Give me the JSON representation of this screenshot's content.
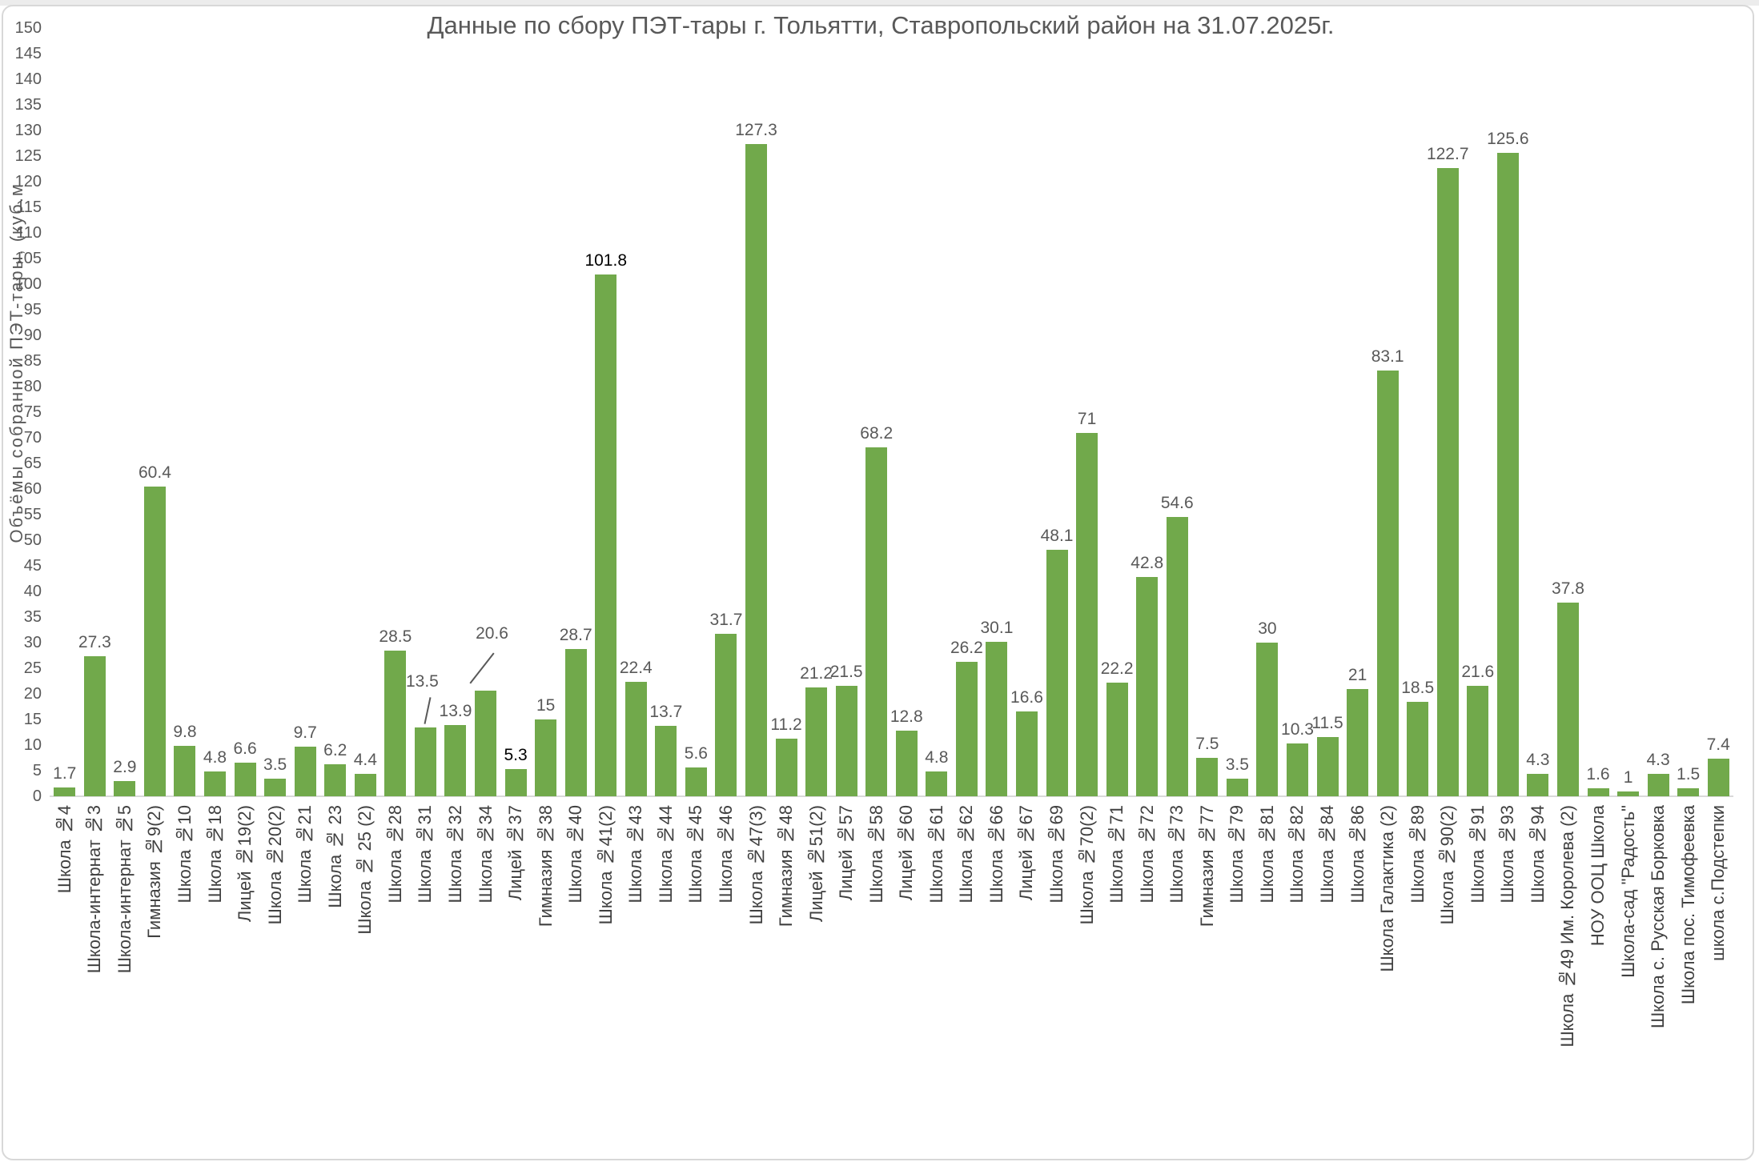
{
  "page": {
    "background_color": "#FFFFFF",
    "frame_border_color": "#D8D8D8"
  },
  "colors": {
    "bar": "#71A94B",
    "text": "#595959",
    "category_text": "#404040",
    "axis_line": "#D9D9D9",
    "emphasis_text": "#000000"
  },
  "chart_data": {
    "type": "bar",
    "title": "Данные по сбору ПЭТ-тары г. Тольятти, Ставропольский район на 31.07.2025г.",
    "ylabel": "Объёмы собранной ПЭТ-тары, (куб.м",
    "xlabel": "",
    "ylim": [
      0,
      150
    ],
    "ytick_step": 5,
    "grid": false,
    "legend": false,
    "bar_color": "#71A94B",
    "categories": [
      "Школа №4",
      "Школа-интернат №3",
      "Школа-интернат №5",
      "Гимназия №9(2)",
      "Школа №10",
      "Школа №18",
      "Лицей №19(2)",
      "Школа №20(2)",
      "Школа №21",
      "Школа № 23",
      "Школа № 25 (2)",
      "Школа №28",
      "Школа №31",
      "Школа №32",
      "Школа №34",
      "Лицей №37",
      "Гимназия №38",
      "Школа №40",
      "Школа №41(2)",
      "Школа №43",
      "Школа №44",
      "Школа №45",
      "Школа №46",
      "Школа №47(3)",
      "Гимназия №48",
      "Лицей №51(2)",
      "Лицей №57",
      "Школа №58",
      "Лицей №60",
      "Школа №61",
      "Школа №62",
      "Школа №66",
      "Лицей №67",
      "Школа №69",
      "Школа №70(2)",
      "Школа №71",
      "Школа №72",
      "Школа №73",
      "Гимназия №77",
      "Школа №79",
      "Школа №81",
      "Школа №82",
      "Школа №84",
      "Школа №86",
      "Школа Галактика (2)",
      "Школа №89",
      "Школа №90(2)",
      "Школа №91",
      "Школа №93",
      "Школа №94",
      "Школа №49 Им. Королева (2)",
      "НОУ ООЦ Школа",
      "Школа-сад \"Радость\"",
      "Школа с. Русская Борковка",
      "Школа пос. Тимофеевка",
      "школа с.Подстепки"
    ],
    "values": [
      1.7,
      27.3,
      2.9,
      60.4,
      9.8,
      4.8,
      6.6,
      3.5,
      9.7,
      6.2,
      4.4,
      28.5,
      13.5,
      13.9,
      20.6,
      5.3,
      15,
      28.7,
      101.8,
      22.4,
      13.7,
      5.6,
      31.7,
      127.3,
      11.2,
      21.2,
      21.5,
      68.2,
      12.8,
      4.8,
      26.2,
      30.1,
      16.6,
      48.1,
      71,
      22.2,
      42.8,
      54.6,
      7.5,
      3.5,
      30,
      10.3,
      11.5,
      21,
      83.1,
      18.5,
      122.7,
      21.6,
      125.6,
      4.3,
      37.8,
      1.6,
      1,
      4.3,
      1.5,
      7.4
    ],
    "dark_label_indices": [
      15,
      18
    ],
    "leader_line_indices": [
      12,
      14
    ]
  }
}
